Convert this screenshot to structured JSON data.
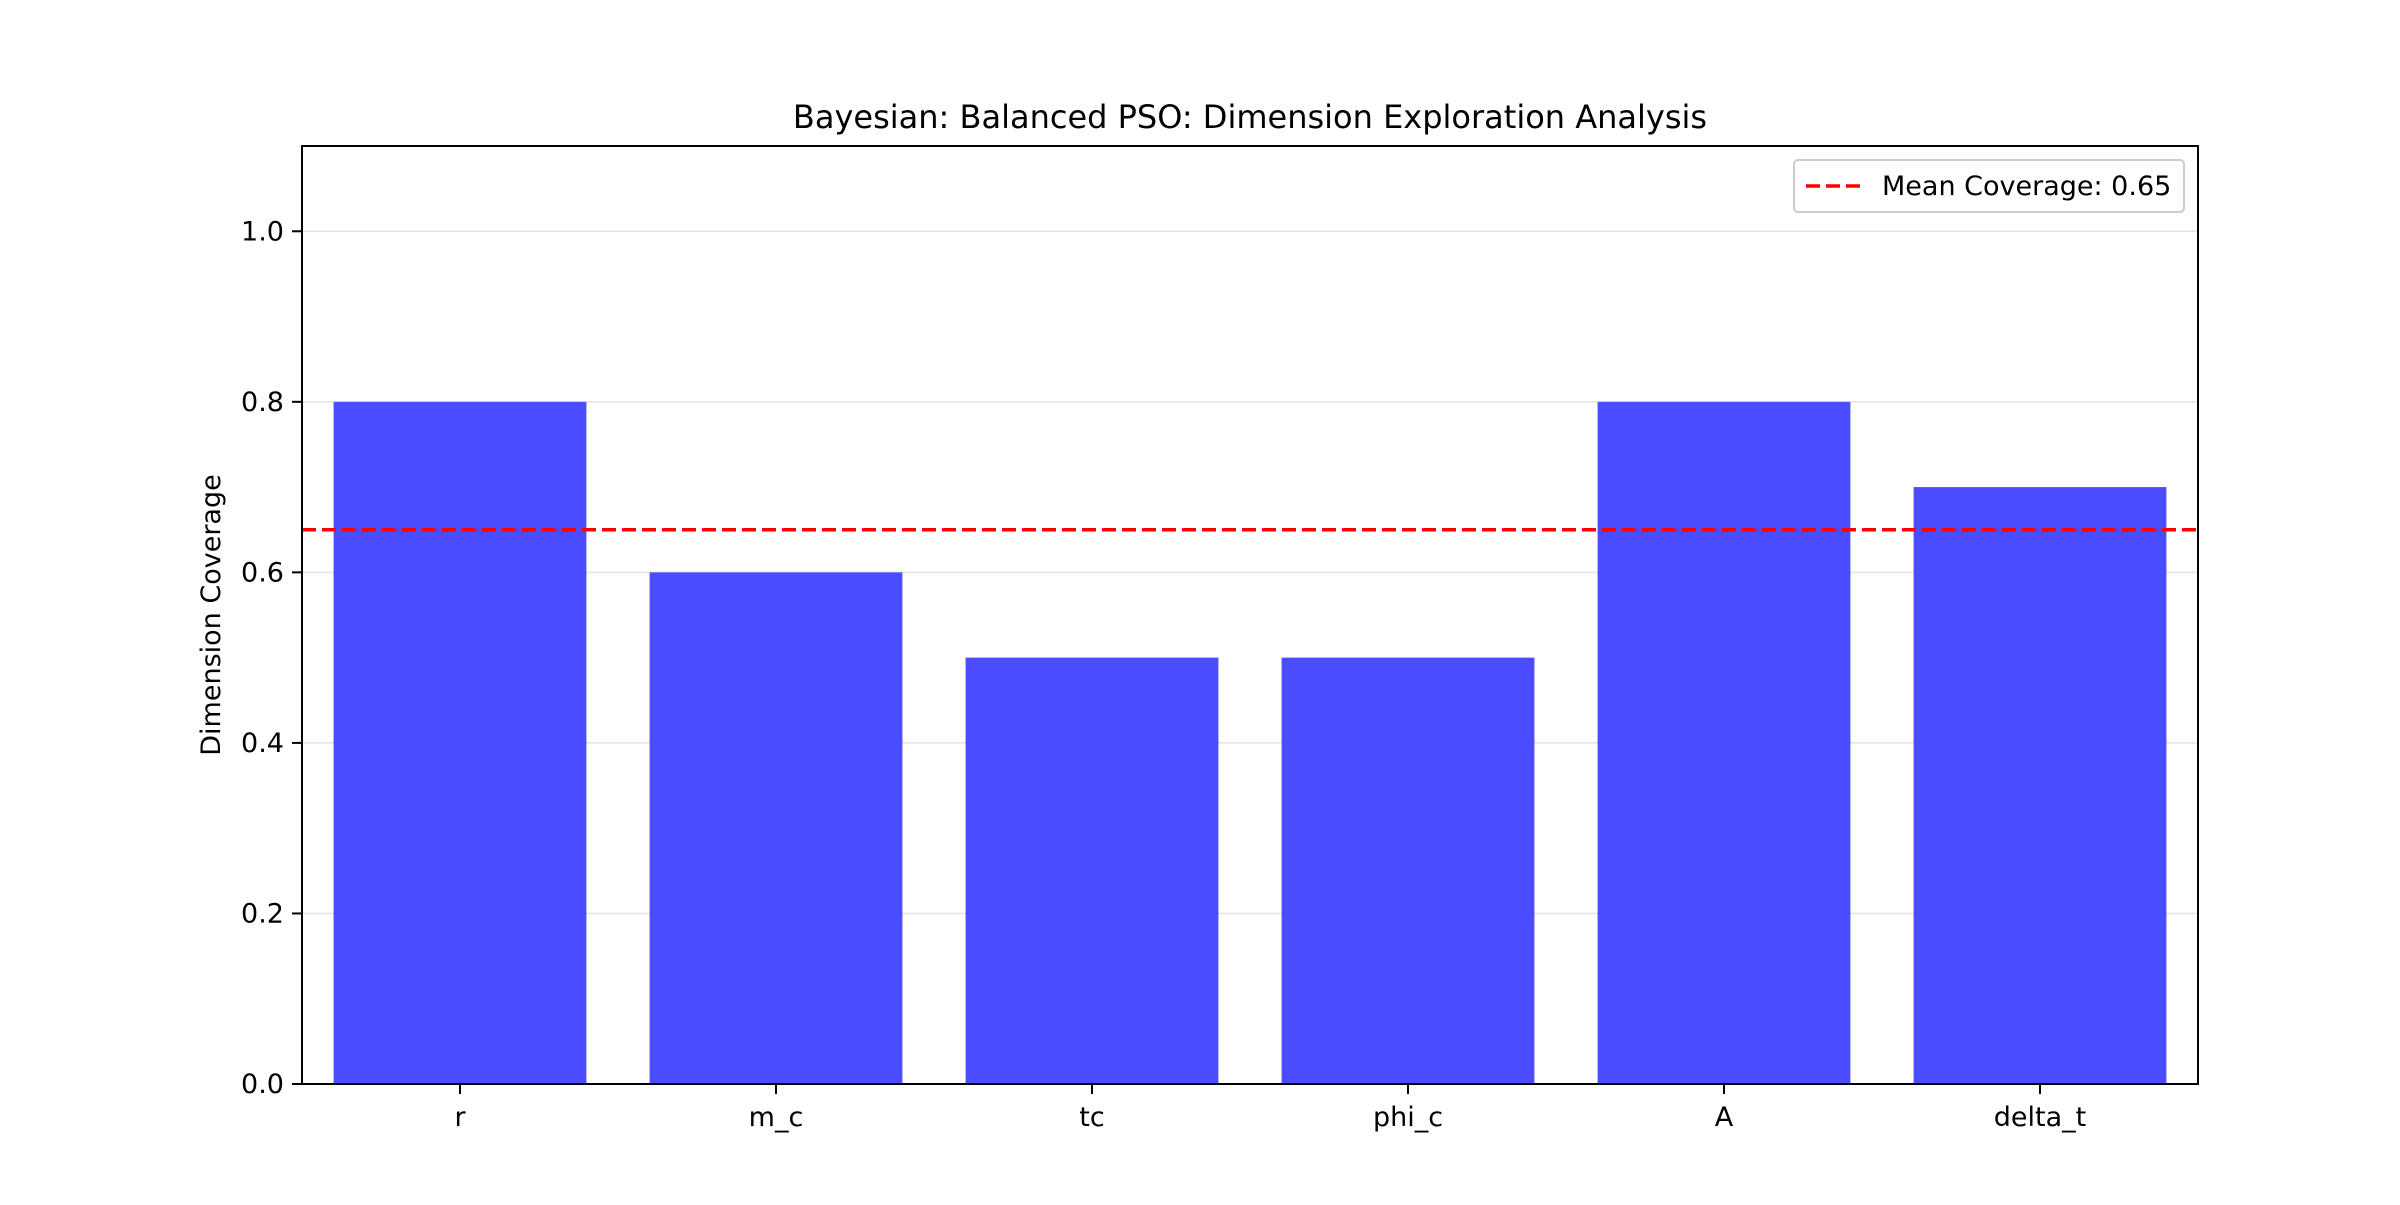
{
  "chart_data": {
    "type": "bar",
    "title": "Bayesian: Balanced PSO: Dimension Exploration Analysis",
    "xlabel": "",
    "ylabel": "Dimension Coverage",
    "categories": [
      "r",
      "m_c",
      "tc",
      "phi_c",
      "A",
      "delta_t"
    ],
    "values": [
      0.8,
      0.6,
      0.5,
      0.5,
      0.8,
      0.7
    ],
    "ylim": [
      0,
      1.1
    ],
    "yticks": [
      0.0,
      0.2,
      0.4,
      0.6,
      0.8,
      1.0
    ],
    "ytick_labels": [
      "0.0",
      "0.2",
      "0.4",
      "0.6",
      "0.8",
      "1.0"
    ],
    "grid": "y",
    "bar_color": "#4b4bff",
    "reference_line": {
      "value": 0.65,
      "label": "Mean Coverage: 0.65",
      "color": "#ff0000",
      "style": "dashed"
    },
    "legend_position": "top-right"
  }
}
